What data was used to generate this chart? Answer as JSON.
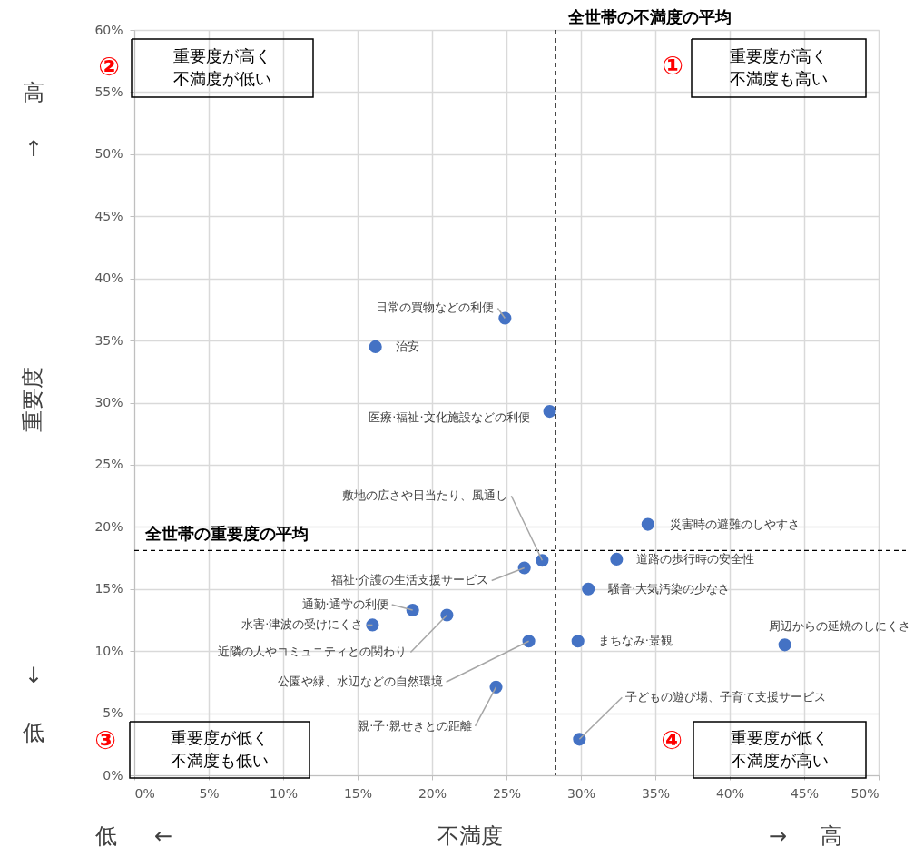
{
  "chart_data": {
    "type": "scatter",
    "xlabel": "不満度",
    "ylabel": "重要度",
    "x": [
      24.9,
      16.2,
      27.9,
      34.5,
      27.4,
      32.4,
      26.2,
      30.5,
      18.7,
      21.0,
      16.0,
      26.5,
      29.8,
      43.7,
      24.3,
      29.9
    ],
    "series": [
      {
        "color": "#4472c4",
        "values": [
          36.8,
          34.5,
          29.3,
          20.2,
          17.3,
          17.4,
          16.7,
          15.0,
          13.3,
          12.9,
          12.1,
          10.8,
          10.8,
          10.5,
          7.1,
          2.9
        ]
      }
    ],
    "marker": "circle",
    "xlim": [
      0,
      50
    ],
    "ylim": [
      0,
      60
    ],
    "xticks": [
      {
        "value": 0,
        "label": "0%"
      },
      {
        "value": 5,
        "label": "5%"
      },
      {
        "value": 10,
        "label": "10%"
      },
      {
        "value": 15,
        "label": "15%"
      },
      {
        "value": 20,
        "label": "20%"
      },
      {
        "value": 25,
        "label": "25%"
      },
      {
        "value": 30,
        "label": "30%"
      },
      {
        "value": 35,
        "label": "35%"
      },
      {
        "value": 40,
        "label": "40%"
      },
      {
        "value": 45,
        "label": "45%"
      },
      {
        "value": 50,
        "label": "50%"
      }
    ],
    "yticks": [
      {
        "value": 0,
        "label": "0%"
      },
      {
        "value": 5,
        "label": "5%"
      },
      {
        "value": 10,
        "label": "10%"
      },
      {
        "value": 15,
        "label": "15%"
      },
      {
        "value": 20,
        "label": "20%"
      },
      {
        "value": 25,
        "label": "25%"
      },
      {
        "value": 30,
        "label": "30%"
      },
      {
        "value": 35,
        "label": "35%"
      },
      {
        "value": 40,
        "label": "40%"
      },
      {
        "value": 45,
        "label": "45%"
      },
      {
        "value": 50,
        "label": "50%"
      },
      {
        "value": 55,
        "label": "55%"
      },
      {
        "value": 60,
        "label": "60%"
      }
    ],
    "grid": true,
    "ref_lines": [
      {
        "axis": "x",
        "value": 28.3,
        "label": "全世帯の不満度の平均",
        "line_style": "dashed",
        "color": "#000000"
      },
      {
        "axis": "y",
        "value": 18.1,
        "label": "全世帯の重要度の平均",
        "line_style": "dashed",
        "color": "#000000"
      }
    ],
    "annotations": [
      "①",
      "重要度が高く不満度も高い",
      "②",
      "重要度が高く不満度が低い",
      "③",
      "重要度が低く不満度も低い",
      "④",
      "重要度が低く不満度が高い",
      "高",
      "↑",
      "↓",
      "低",
      "低",
      "←",
      "→",
      "高",
      {
        "text": "日常の買物などの利便",
        "x": 24.9,
        "y": 36.8
      },
      {
        "text": "治安",
        "x": 16.2,
        "y": 34.5
      },
      {
        "text": "医療·福祉·文化施設などの利便",
        "x": 27.9,
        "y": 29.3
      },
      {
        "text": "災害時の避難のしやすさ",
        "x": 34.5,
        "y": 20.2
      },
      {
        "text": "敷地の広さや日当たり、風通し",
        "x": 27.4,
        "y": 17.3
      },
      {
        "text": "道路の歩行時の安全性",
        "x": 32.4,
        "y": 17.4
      },
      {
        "text": "福祉·介護の生活支援サービス",
        "x": 26.2,
        "y": 16.7
      },
      {
        "text": "騒音·大気汚染の少なさ",
        "x": 30.5,
        "y": 15.0
      },
      {
        "text": "通勤·通学の利便",
        "x": 18.7,
        "y": 13.3
      },
      {
        "text": "近隣の人やコミュニティとの関わり",
        "x": 21.0,
        "y": 12.9
      },
      {
        "text": "水害·津波の受けにくさ",
        "x": 16.0,
        "y": 12.1
      },
      {
        "text": "公園や緑、水辺などの自然環境",
        "x": 26.5,
        "y": 10.8
      },
      {
        "text": "まちなみ·景観",
        "x": 29.8,
        "y": 10.8
      },
      {
        "text": "周辺からの延焼のしにくさ",
        "x": 43.7,
        "y": 10.5
      },
      {
        "text": "親·子·親せきとの距離",
        "x": 24.3,
        "y": 7.1
      },
      {
        "text": "子どもの遊び場、子育て支援サービス",
        "x": 29.9,
        "y": 2.9
      }
    ]
  }
}
